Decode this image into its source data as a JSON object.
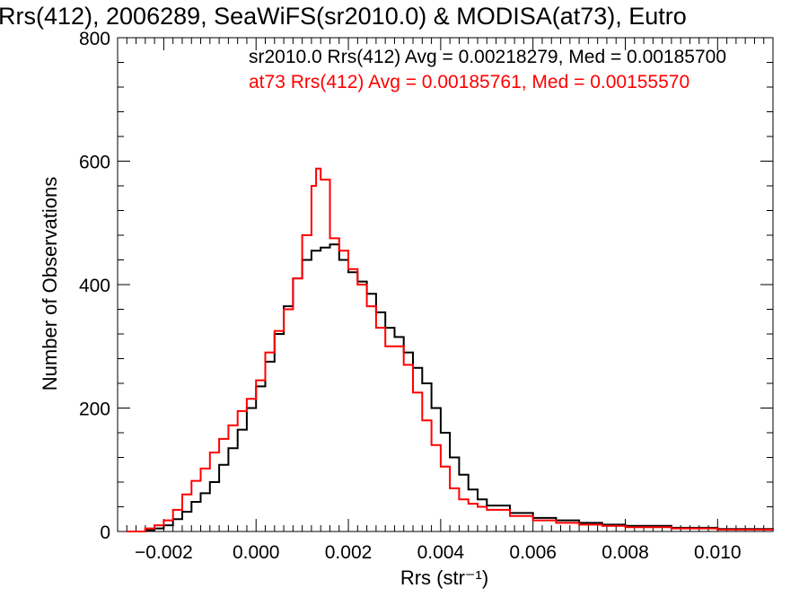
{
  "chart_data": {
    "type": "line",
    "title": "Rrs(412), 2006289, SeaWiFS(sr2010.0) & MODISA(at73), Eutro",
    "xlabel": "Rrs (str⁻¹)",
    "ylabel": "Number of Observations",
    "xlim": [
      -0.003,
      0.0112
    ],
    "ylim": [
      0,
      800
    ],
    "x_ticks": [
      -0.002,
      0.0,
      0.002,
      0.004,
      0.006,
      0.008,
      0.01
    ],
    "x_tick_labels": [
      "−0.002",
      "0.000",
      "0.002",
      "0.004",
      "0.006",
      "0.008",
      "0.010"
    ],
    "y_ticks": [
      0,
      200,
      400,
      600,
      800
    ],
    "y_tick_labels": [
      "0",
      "200",
      "400",
      "600",
      "800"
    ],
    "grid": false,
    "legend_placement": "top-right",
    "series": [
      {
        "name": "sr2010.0",
        "color": "#000000",
        "legend_text": "sr2010.0 Rrs(412) Avg = 0.00218279, Med = 0.00185700",
        "points": [
          [
            -0.0028,
            0
          ],
          [
            -0.0024,
            2
          ],
          [
            -0.0022,
            5
          ],
          [
            -0.002,
            10
          ],
          [
            -0.0018,
            20
          ],
          [
            -0.0016,
            32
          ],
          [
            -0.0014,
            48
          ],
          [
            -0.0012,
            62
          ],
          [
            -0.001,
            80
          ],
          [
            -0.0008,
            108
          ],
          [
            -0.0006,
            135
          ],
          [
            -0.0004,
            165
          ],
          [
            -0.0002,
            200
          ],
          [
            0.0,
            235
          ],
          [
            0.0002,
            275
          ],
          [
            0.0004,
            320
          ],
          [
            0.0006,
            365
          ],
          [
            0.0008,
            410
          ],
          [
            0.001,
            440
          ],
          [
            0.0012,
            455
          ],
          [
            0.0014,
            460
          ],
          [
            0.0016,
            465
          ],
          [
            0.0018,
            440
          ],
          [
            0.002,
            420
          ],
          [
            0.0022,
            405
          ],
          [
            0.0024,
            385
          ],
          [
            0.0026,
            355
          ],
          [
            0.0028,
            330
          ],
          [
            0.003,
            315
          ],
          [
            0.0032,
            290
          ],
          [
            0.0034,
            265
          ],
          [
            0.0036,
            240
          ],
          [
            0.0038,
            200
          ],
          [
            0.004,
            160
          ],
          [
            0.0042,
            120
          ],
          [
            0.0044,
            92
          ],
          [
            0.0046,
            68
          ],
          [
            0.0048,
            52
          ],
          [
            0.005,
            42
          ],
          [
            0.0055,
            30
          ],
          [
            0.006,
            22
          ],
          [
            0.0065,
            18
          ],
          [
            0.007,
            14
          ],
          [
            0.0075,
            11
          ],
          [
            0.008,
            9
          ],
          [
            0.009,
            6
          ],
          [
            0.01,
            4
          ],
          [
            0.0112,
            2
          ]
        ]
      },
      {
        "name": "at73",
        "color": "#ff0000",
        "legend_text": "at73 Rrs(412) Avg = 0.00185761, Med = 0.00155570",
        "points": [
          [
            -0.0028,
            0
          ],
          [
            -0.0024,
            5
          ],
          [
            -0.0022,
            10
          ],
          [
            -0.002,
            18
          ],
          [
            -0.0018,
            35
          ],
          [
            -0.0016,
            60
          ],
          [
            -0.0014,
            82
          ],
          [
            -0.0012,
            102
          ],
          [
            -0.001,
            128
          ],
          [
            -0.0008,
            150
          ],
          [
            -0.0006,
            172
          ],
          [
            -0.0004,
            195
          ],
          [
            -0.0002,
            215
          ],
          [
            0.0,
            245
          ],
          [
            0.0002,
            290
          ],
          [
            0.0004,
            325
          ],
          [
            0.0006,
            360
          ],
          [
            0.0008,
            410
          ],
          [
            0.001,
            480
          ],
          [
            0.0012,
            560
          ],
          [
            0.0013,
            588
          ],
          [
            0.0014,
            570
          ],
          [
            0.0016,
            475
          ],
          [
            0.0018,
            455
          ],
          [
            0.002,
            425
          ],
          [
            0.0022,
            400
          ],
          [
            0.0024,
            365
          ],
          [
            0.0026,
            330
          ],
          [
            0.0028,
            300
          ],
          [
            0.003,
            300
          ],
          [
            0.0032,
            270
          ],
          [
            0.0034,
            225
          ],
          [
            0.0036,
            180
          ],
          [
            0.0038,
            140
          ],
          [
            0.004,
            105
          ],
          [
            0.0042,
            70
          ],
          [
            0.0044,
            52
          ],
          [
            0.0046,
            45
          ],
          [
            0.0048,
            40
          ],
          [
            0.005,
            35
          ],
          [
            0.0055,
            25
          ],
          [
            0.006,
            18
          ],
          [
            0.0065,
            14
          ],
          [
            0.007,
            11
          ],
          [
            0.0075,
            9
          ],
          [
            0.008,
            7
          ],
          [
            0.009,
            5
          ],
          [
            0.01,
            3
          ],
          [
            0.0112,
            2
          ]
        ]
      }
    ]
  }
}
